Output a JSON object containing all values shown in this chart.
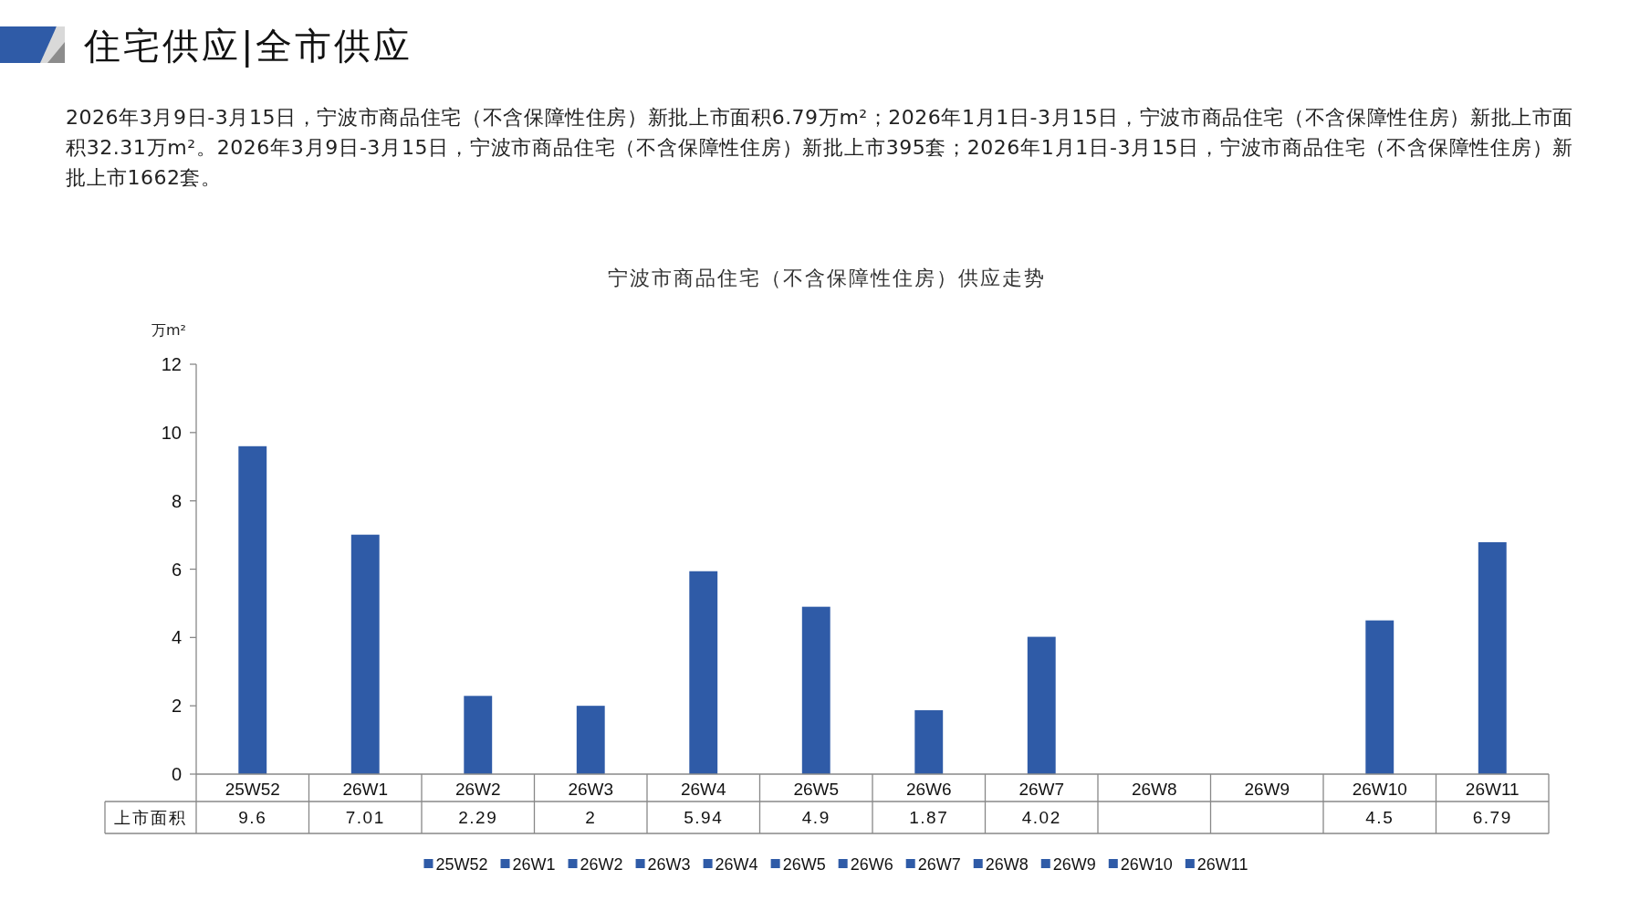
{
  "chart_data": {
    "type": "bar",
    "title": "宁波市商品住宅（不含保障性住房）供应走势",
    "ylabel": "万m²",
    "annotations": [
      "住宅供应|全市供应",
      "2026年3月9日-3月15日，宁波市商品住宅（不含保障性住房）新批上市面积6.79万m²；2026年1月1日-3月15日，宁波市商品住宅（不含保障性住房）新批上市面积32.31万m²。2026年3月9日-3月15日，宁波市商品住宅（不含保障性住房）新批上市395套；2026年1月1日-3月15日，宁波市商品住宅（不含保障性住房）新批上市1662套。"
    ],
    "categories": [
      "25W52",
      "26W1",
      "26W2",
      "26W3",
      "26W4",
      "26W5",
      "26W6",
      "26W7",
      "26W8",
      "26W9",
      "26W10",
      "26W11"
    ],
    "series": [
      {
        "name": "上市面积",
        "color": "#2f5ba7",
        "values": [
          9.6,
          7.01,
          2.29,
          2,
          5.94,
          4.9,
          1.87,
          4.02,
          null,
          null,
          4.5,
          6.79
        ]
      }
    ],
    "ylim": [
      0,
      12
    ],
    "yticks": [
      0,
      2,
      4,
      6,
      8,
      10,
      12
    ],
    "grid": false,
    "legend": "bottom",
    "data_labels": true
  }
}
